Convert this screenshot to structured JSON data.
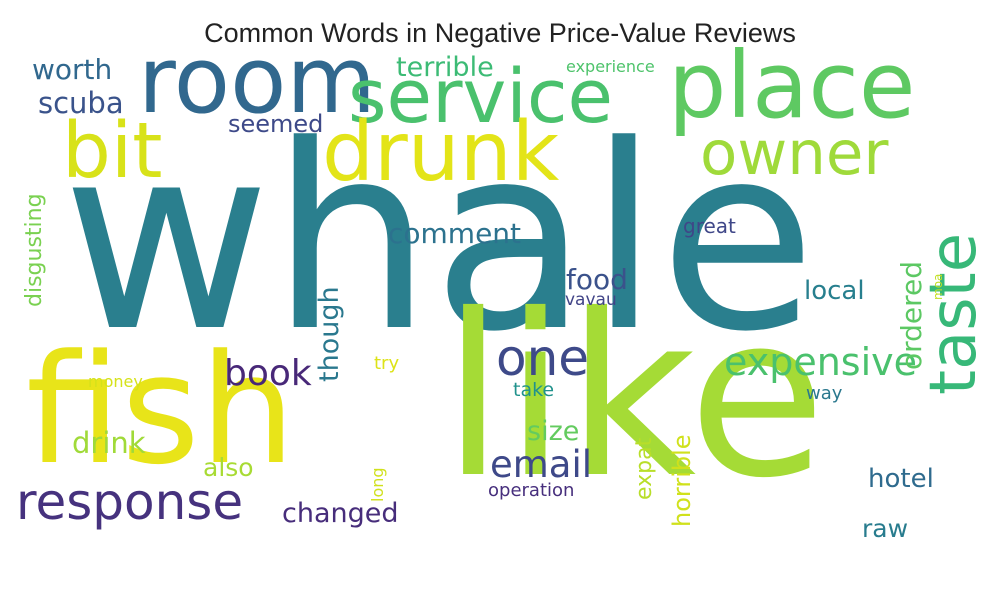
{
  "title": "Common Words in Negative Price-Value Reviews",
  "words": [
    {
      "text": "whale",
      "color": "#2a7f8e",
      "orientation": "horizontal"
    },
    {
      "text": "like",
      "color": "#a5db36",
      "orientation": "horizontal"
    },
    {
      "text": "fish",
      "color": "#e8e419",
      "orientation": "horizontal"
    },
    {
      "text": "place",
      "color": "#5ec962",
      "orientation": "horizontal"
    },
    {
      "text": "room",
      "color": "#31688e",
      "orientation": "horizontal"
    },
    {
      "text": "service",
      "color": "#4ac16d",
      "orientation": "horizontal"
    },
    {
      "text": "drunk",
      "color": "#e3e418",
      "orientation": "horizontal"
    },
    {
      "text": "bit",
      "color": "#d8e219",
      "orientation": "horizontal"
    },
    {
      "text": "owner",
      "color": "#9fda3a",
      "orientation": "horizontal"
    },
    {
      "text": "taste",
      "color": "#37b878",
      "orientation": "vertical"
    },
    {
      "text": "response",
      "color": "#46327e",
      "orientation": "horizontal"
    },
    {
      "text": "one",
      "color": "#3e4a89",
      "orientation": "horizontal"
    },
    {
      "text": "expensive",
      "color": "#4ac16d",
      "orientation": "horizontal"
    },
    {
      "text": "email",
      "color": "#3e4989",
      "orientation": "horizontal"
    },
    {
      "text": "book",
      "color": "#482878",
      "orientation": "horizontal"
    },
    {
      "text": "ordered",
      "color": "#5cc863",
      "orientation": "vertical"
    },
    {
      "text": "comment",
      "color": "#2c728e",
      "orientation": "horizontal"
    },
    {
      "text": "food",
      "color": "#3b528b",
      "orientation": "horizontal"
    },
    {
      "text": "local",
      "color": "#277f8e",
      "orientation": "horizontal"
    },
    {
      "text": "drink",
      "color": "#a0da39",
      "orientation": "horizontal"
    },
    {
      "text": "worth",
      "color": "#31688e",
      "orientation": "horizontal"
    },
    {
      "text": "scuba",
      "color": "#3a538b",
      "orientation": "horizontal"
    },
    {
      "text": "terrible",
      "color": "#3cbb75",
      "orientation": "horizontal"
    },
    {
      "text": "seemed",
      "color": "#3e4a89",
      "orientation": "horizontal"
    },
    {
      "text": "disgusting",
      "color": "#7ad151",
      "orientation": "vertical"
    },
    {
      "text": "though",
      "color": "#2a788e",
      "orientation": "vertical"
    },
    {
      "text": "changed",
      "color": "#472d7b",
      "orientation": "horizontal"
    },
    {
      "text": "size",
      "color": "#63cb5f",
      "orientation": "horizontal"
    },
    {
      "text": "also",
      "color": "#a8db34",
      "orientation": "horizontal"
    },
    {
      "text": "hotel",
      "color": "#2f6b8e",
      "orientation": "horizontal"
    },
    {
      "text": "horrible",
      "color": "#d0e11c",
      "orientation": "vertical"
    },
    {
      "text": "expat",
      "color": "#b8de29",
      "orientation": "vertical"
    },
    {
      "text": "raw",
      "color": "#287c8e",
      "orientation": "horizontal"
    },
    {
      "text": "great",
      "color": "#3f4788",
      "orientation": "horizontal"
    },
    {
      "text": "vavau",
      "color": "#414487",
      "orientation": "horizontal"
    },
    {
      "text": "moa",
      "color": "#c2df23",
      "orientation": "vertical"
    },
    {
      "text": "experience",
      "color": "#4ec36b",
      "orientation": "horizontal"
    },
    {
      "text": "try",
      "color": "#dde318",
      "orientation": "horizontal"
    },
    {
      "text": "money",
      "color": "#d5e21a",
      "orientation": "horizontal"
    },
    {
      "text": "take",
      "color": "#20928c",
      "orientation": "horizontal"
    },
    {
      "text": "way",
      "color": "#2a788e",
      "orientation": "horizontal"
    },
    {
      "text": "long",
      "color": "#d0e11c",
      "orientation": "vertical"
    },
    {
      "text": "operation",
      "color": "#472f7d",
      "orientation": "horizontal"
    }
  ]
}
